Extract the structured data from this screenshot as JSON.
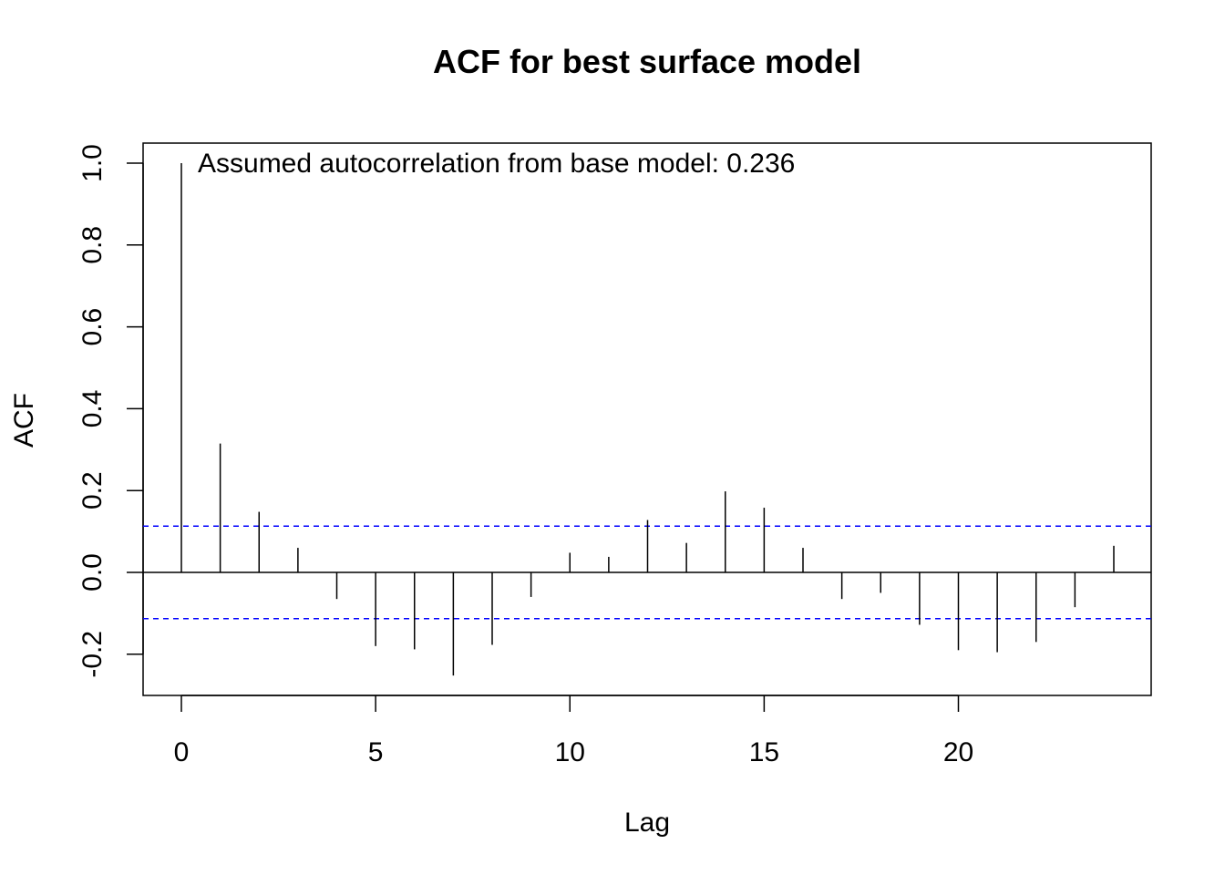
{
  "chart_data": {
    "type": "bar",
    "title": "ACF for best surface model",
    "xlabel": "Lag",
    "ylabel": "ACF",
    "annotation": "Assumed autocorrelation from base model: 0.236",
    "xlim": [
      -1,
      25
    ],
    "ylim": [
      -0.3,
      1.05
    ],
    "x_ticks": [
      0,
      5,
      10,
      15,
      20
    ],
    "x_tick_labels": [
      "0",
      "5",
      "10",
      "15",
      "20"
    ],
    "y_ticks": [
      -0.2,
      0.0,
      0.2,
      0.4,
      0.6,
      0.8,
      1.0
    ],
    "y_tick_labels": [
      "-0.2",
      "0.0",
      "0.2",
      "0.4",
      "0.6",
      "0.8",
      "1.0"
    ],
    "lags": [
      0,
      1,
      2,
      3,
      4,
      5,
      6,
      7,
      8,
      9,
      10,
      11,
      12,
      13,
      14,
      15,
      16,
      17,
      18,
      19,
      20,
      21,
      22,
      23,
      24
    ],
    "acf": [
      1.0,
      0.315,
      0.148,
      0.06,
      -0.065,
      -0.18,
      -0.188,
      -0.252,
      -0.177,
      -0.06,
      0.048,
      0.038,
      0.128,
      0.072,
      0.198,
      0.158,
      0.06,
      -0.065,
      -0.05,
      -0.128,
      -0.19,
      -0.195,
      -0.17,
      -0.085,
      0.065
    ],
    "confidence_bound": 0.113,
    "confidence_color": "#0000ff",
    "spike_color": "#000000",
    "grid": false
  }
}
